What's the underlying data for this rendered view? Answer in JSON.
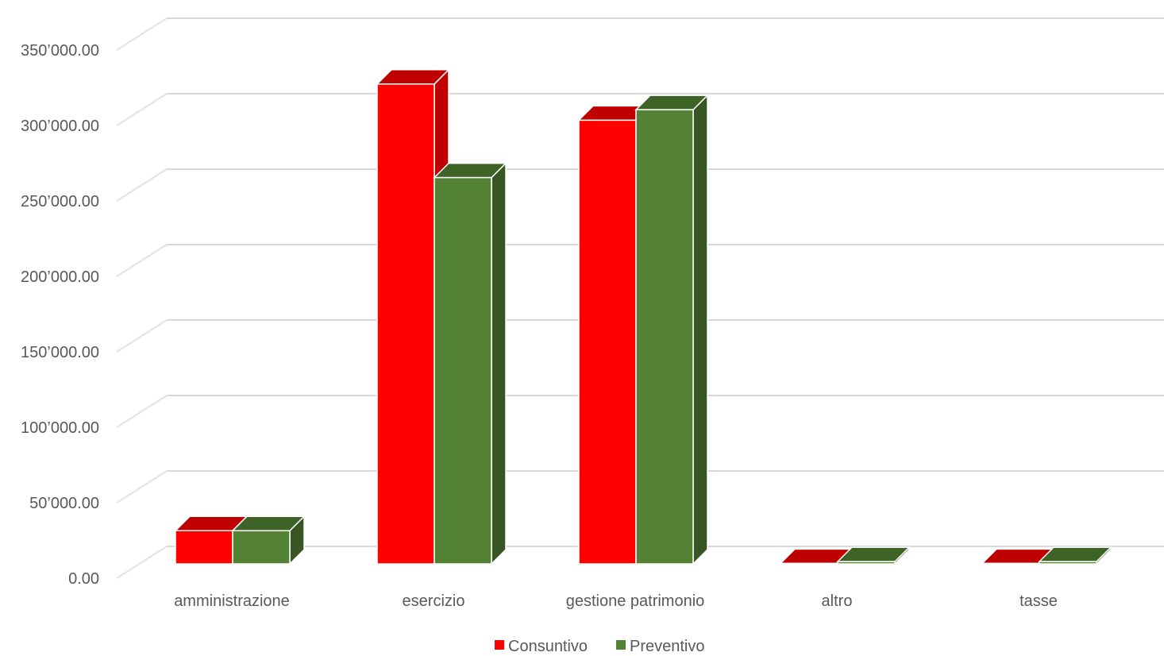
{
  "chart_data": {
    "type": "bar",
    "style": "3d-clustered-column",
    "categories": [
      "amministrazione",
      "esercizio",
      "gestione patrimonio",
      "altro",
      "tasse"
    ],
    "series": [
      {
        "name": "Consuntivo",
        "values": [
          22000,
          318000,
          294000,
          300,
          300
        ],
        "color": "#ff0000",
        "side_color": "#c00000",
        "top_color": "#c00000"
      },
      {
        "name": "Preventivo",
        "values": [
          22000,
          256000,
          301000,
          1500,
          1500
        ],
        "color": "#548235",
        "side_color": "#375623",
        "top_color": "#3d6327"
      }
    ],
    "y_ticks": [
      "0.00",
      "50’000.00",
      "100’000.00",
      "150’000.00",
      "200’000.00",
      "250’000.00",
      "300’000.00",
      "350’000.00"
    ],
    "ylim": [
      0,
      370000
    ],
    "title": "",
    "xlabel": "",
    "ylabel": "",
    "grid": true,
    "legend_position": "bottom"
  }
}
